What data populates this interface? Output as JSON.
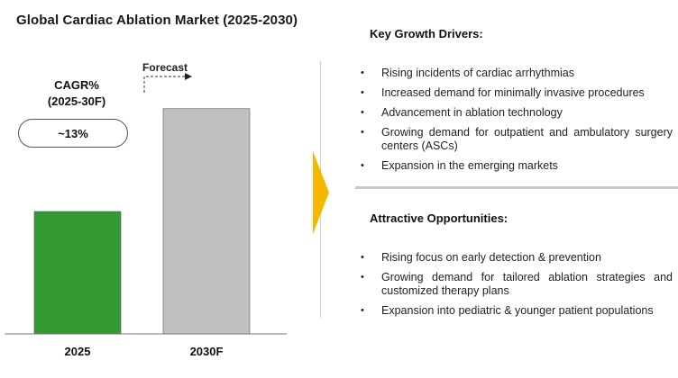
{
  "title": "Global Cardiac Ablation Market (2025-2030)",
  "cagr": {
    "label": "CAGR%",
    "period": "(2025-30F)",
    "value": "~13%"
  },
  "forecast_label": "Forecast",
  "colors": {
    "bar_2025": "#339933",
    "bar_2030": "#c0c0c0",
    "arrow": "#f5b800",
    "divider": "#c8c8c8"
  },
  "chart_data": {
    "type": "bar",
    "title": "Global Cardiac Ablation Market (2025-2030)",
    "categories": [
      "2025",
      "2030F"
    ],
    "values": [
      1.0,
      1.84
    ],
    "colors": [
      "#339933",
      "#c0c0c0"
    ],
    "ylim": [
      0,
      2.0
    ],
    "grid": false,
    "annotation": "CAGR% (2025-30F) ~13%"
  },
  "drivers": {
    "heading": "Key Growth Drivers:",
    "items": [
      "Rising incidents of cardiac arrhythmias",
      "Increased demand for minimally invasive procedures",
      "Advancement in ablation technology",
      "Growing demand for outpatient and ambulatory surgery centers (ASCs)",
      "Expansion in the emerging markets"
    ]
  },
  "opportunities": {
    "heading": "Attractive Opportunities:",
    "items": [
      "Rising focus on early detection & prevention",
      "Growing demand for tailored ablation strategies and customized therapy plans",
      "Expansion into pediatric & younger patient populations"
    ]
  }
}
